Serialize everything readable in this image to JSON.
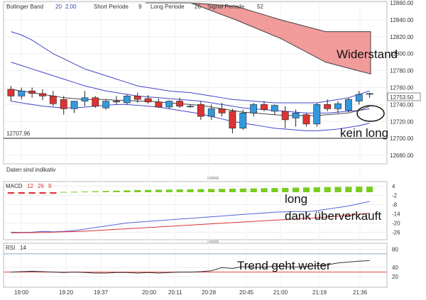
{
  "header": {
    "indicator": "Bollinger Band",
    "bb_period": "20",
    "bb_dev": "2.00",
    "short_label": "Short Periode",
    "short_value": "9",
    "long_label": "Long Periode",
    "long_value": "26",
    "signal_label": "Signal Periode",
    "signal_value": "52"
  },
  "colors": {
    "bull": "#3399dd",
    "bear": "#dd3333",
    "band": "#4444cc",
    "ma": "#444444",
    "cloud": "#f08a8a",
    "macd_line": "#5566dd",
    "signal_line": "#dd3333",
    "hist": "#77cc22",
    "rsi": "#333333",
    "rsi_level": "#dd4444"
  },
  "annotations": {
    "resistance": "Widerstand",
    "no_long": "kein long",
    "long": "long",
    "oversold": "dank überverkauft",
    "trend": "Trend geht weiter"
  },
  "labels": {
    "daten": "Daten sind indikativ",
    "macd": "MACD",
    "macd_p1": "12",
    "macd_p2": "26",
    "macd_p3": "9",
    "rsi": "RSI",
    "rsi_p": "14",
    "low_marker": "12707.96",
    "current_price": "12753.50"
  },
  "chart_data": {
    "type": "candlestick",
    "price_axis": {
      "ticks": [
        "12860.00",
        "12840.00",
        "12820.00",
        "12800.00",
        "12780.00",
        "12760.00",
        "12740.00",
        "12720.00",
        "12700.00",
        "12680.00"
      ],
      "ylim": [
        12670,
        12860
      ]
    },
    "time_axis": {
      "ticks": [
        "19:00",
        "19:20",
        "19:37",
        "20:00",
        "20:11",
        "20:28",
        "20:45",
        "21:00",
        "21:19",
        "21:36"
      ]
    },
    "candles": [
      {
        "o": 12758,
        "h": 12762,
        "l": 12744,
        "c": 12750
      },
      {
        "o": 12750,
        "h": 12760,
        "l": 12746,
        "c": 12756
      },
      {
        "o": 12756,
        "h": 12760,
        "l": 12748,
        "c": 12753
      },
      {
        "o": 12753,
        "h": 12758,
        "l": 12745,
        "c": 12750
      },
      {
        "o": 12750,
        "h": 12756,
        "l": 12738,
        "c": 12741
      },
      {
        "o": 12746,
        "h": 12750,
        "l": 12728,
        "c": 12735
      },
      {
        "o": 12735,
        "h": 12744,
        "l": 12730,
        "c": 12744
      },
      {
        "o": 12744,
        "h": 12756,
        "l": 12738,
        "c": 12748
      },
      {
        "o": 12748,
        "h": 12750,
        "l": 12736,
        "c": 12738
      },
      {
        "o": 12736,
        "h": 12746,
        "l": 12734,
        "c": 12744
      },
      {
        "o": 12744,
        "h": 12750,
        "l": 12740,
        "c": 12743
      },
      {
        "o": 12742,
        "h": 12752,
        "l": 12740,
        "c": 12750
      },
      {
        "o": 12750,
        "h": 12754,
        "l": 12742,
        "c": 12746
      },
      {
        "o": 12747,
        "h": 12751,
        "l": 12741,
        "c": 12743
      },
      {
        "o": 12743,
        "h": 12747,
        "l": 12736,
        "c": 12737
      },
      {
        "o": 12737,
        "h": 12745,
        "l": 12735,
        "c": 12744
      },
      {
        "o": 12744,
        "h": 12748,
        "l": 12736,
        "c": 12738
      },
      {
        "o": 12738,
        "h": 12740,
        "l": 12736,
        "c": 12738
      },
      {
        "o": 12740,
        "h": 12744,
        "l": 12722,
        "c": 12726
      },
      {
        "o": 12726,
        "h": 12740,
        "l": 12722,
        "c": 12735
      },
      {
        "o": 12735,
        "h": 12742,
        "l": 12726,
        "c": 12730
      },
      {
        "o": 12732,
        "h": 12735,
        "l": 12706,
        "c": 12712
      },
      {
        "o": 12712,
        "h": 12734,
        "l": 12710,
        "c": 12730
      },
      {
        "o": 12730,
        "h": 12742,
        "l": 12726,
        "c": 12740
      },
      {
        "o": 12740,
        "h": 12744,
        "l": 12732,
        "c": 12734
      },
      {
        "o": 12732,
        "h": 12740,
        "l": 12728,
        "c": 12739
      },
      {
        "o": 12732,
        "h": 12738,
        "l": 12712,
        "c": 12722
      },
      {
        "o": 12724,
        "h": 12734,
        "l": 12714,
        "c": 12730
      },
      {
        "o": 12728,
        "h": 12730,
        "l": 12714,
        "c": 12717
      },
      {
        "o": 12717,
        "h": 12742,
        "l": 12714,
        "c": 12740
      },
      {
        "o": 12740,
        "h": 12746,
        "l": 12732,
        "c": 12735
      },
      {
        "o": 12735,
        "h": 12744,
        "l": 12730,
        "c": 12741
      },
      {
        "o": 12733,
        "h": 12748,
        "l": 12731,
        "c": 12746
      },
      {
        "o": 12744,
        "h": 12756,
        "l": 12740,
        "c": 12752
      },
      {
        "o": 12752,
        "h": 12754,
        "l": 12748,
        "c": 12753
      }
    ],
    "resistance_cloud": {
      "top": [
        12860,
        12860,
        12856,
        12840,
        12826,
        12826
      ],
      "bottom": [
        12860,
        12860,
        12840,
        12818,
        12790,
        12776
      ]
    },
    "bollinger_upper": [
      12826,
      12822,
      12816,
      12808,
      12800,
      12794,
      12788,
      12782,
      12778,
      12774,
      12770,
      12766,
      12762,
      12760,
      12758,
      12756,
      12755,
      12754,
      12752,
      12750,
      12748,
      12746,
      12745,
      12744,
      12743,
      12742,
      12742,
      12742,
      12742,
      12742,
      12744,
      12746,
      12748,
      12752,
      12756
    ],
    "bollinger_mid": [
      12790,
      12786,
      12782,
      12778,
      12774,
      12770,
      12766,
      12762,
      12759,
      12756,
      12754,
      12752,
      12750,
      12749,
      12748,
      12747,
      12746,
      12745,
      12744,
      12742,
      12740,
      12738,
      12736,
      12735,
      12734,
      12733,
      12732,
      12731,
      12730,
      12730,
      12730,
      12731,
      12732,
      12733,
      12735
    ],
    "bollinger_lower": [
      12744,
      12742,
      12740,
      12738,
      12737,
      12736,
      12736,
      12737,
      12738,
      12739,
      12740,
      12740,
      12739,
      12738,
      12737,
      12735,
      12733,
      12731,
      12729,
      12726,
      12723,
      12720,
      12718,
      12716,
      12714,
      12712,
      12711,
      12710,
      12709,
      12709,
      12710,
      12711,
      12713,
      12715,
      12718
    ],
    "moving_average": [
      12758,
      12756,
      12754,
      12752,
      12750,
      12748,
      12747,
      12746,
      12746,
      12746,
      12745,
      12745,
      12744,
      12744,
      12743,
      12742,
      12741,
      12740,
      12739,
      12737,
      12735,
      12733,
      12731,
      12730,
      12729,
      12728,
      12727,
      12727,
      12727,
      12727,
      12728,
      12729,
      12730,
      12733,
      12738
    ],
    "macd": {
      "yticks": [
        "4",
        "-2",
        "-8",
        "-14",
        "-20",
        "-26"
      ],
      "ylim": [
        -30,
        6
      ],
      "histogram": [
        -1,
        -1,
        -1,
        -1,
        -1,
        0.2,
        0.3,
        0.4,
        0.6,
        0.8,
        1,
        1.2,
        1.4,
        1.5,
        1.6,
        1.7,
        1.8,
        1.9,
        2,
        2.1,
        2.2,
        2.3,
        2.4,
        2.5,
        2.6,
        2.7,
        2.8,
        3,
        3.1,
        3.2,
        3.3,
        3.4,
        3.5,
        3.6,
        3.6
      ],
      "macd_line": [
        -26,
        -26.2,
        -26,
        -25.5,
        -25.8,
        -25.5,
        -25,
        -24,
        -23,
        -22,
        -21,
        -20,
        -19.5,
        -19,
        -18.5,
        -18,
        -17.5,
        -17,
        -16.5,
        -16,
        -15.5,
        -15,
        -14.5,
        -14,
        -13.5,
        -13,
        -12.8,
        -12.5,
        -12.8,
        -12,
        -11,
        -10,
        -9,
        -7.5,
        -6
      ],
      "signal_line": [
        -26.5,
        -26.4,
        -26.3,
        -26.2,
        -26,
        -25.8,
        -25.6,
        -25.3,
        -25,
        -24.6,
        -24.2,
        -23.8,
        -23.4,
        -23,
        -22.6,
        -22.2,
        -21.8,
        -21.4,
        -21,
        -20.6,
        -20.2,
        -19.8,
        -19.4,
        -19,
        -18.6,
        -18.2,
        -17.8,
        -17.4,
        -17,
        -16.6,
        -16.1,
        -15.6,
        -15.1,
        -14.4,
        -13.6
      ]
    },
    "rsi": {
      "yticks": [
        "80",
        "40",
        "20"
      ],
      "ylim": [
        0,
        90
      ],
      "level": 30,
      "values": [
        30,
        31,
        32,
        31,
        30,
        29,
        30,
        29,
        28,
        28,
        29,
        29,
        28,
        29,
        28,
        29,
        30,
        30,
        31,
        33,
        40,
        38,
        42,
        40,
        41,
        43,
        42,
        41,
        42,
        44,
        46,
        50,
        52,
        54,
        55
      ]
    }
  }
}
